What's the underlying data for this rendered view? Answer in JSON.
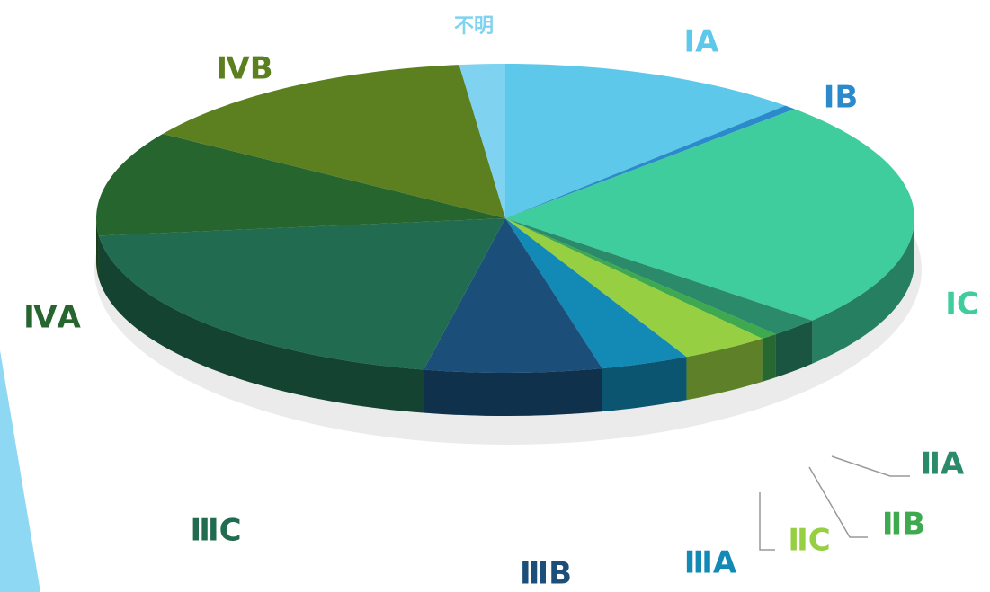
{
  "chart_data": {
    "type": "pie",
    "categories": [
      "ⅠA",
      "ⅠB",
      "ⅠC",
      "ⅡA",
      "ⅡB",
      "ⅡC",
      "ⅢA",
      "ⅢB",
      "ⅢC",
      "ⅣA",
      "ⅣB",
      "不明"
    ],
    "values": [
      12,
      0.5,
      24,
      2,
      0.7,
      3.5,
      3.5,
      7,
      20,
      11,
      14,
      1.8
    ],
    "colors": [
      "#5dc8ea",
      "#2b8acb",
      "#3fcd9d",
      "#2a8a6a",
      "#3ea94e",
      "#97cf42",
      "#1389b5",
      "#1b4f79",
      "#216c50",
      "#27652f",
      "#5c801f",
      "#7fd3f0"
    ]
  }
}
